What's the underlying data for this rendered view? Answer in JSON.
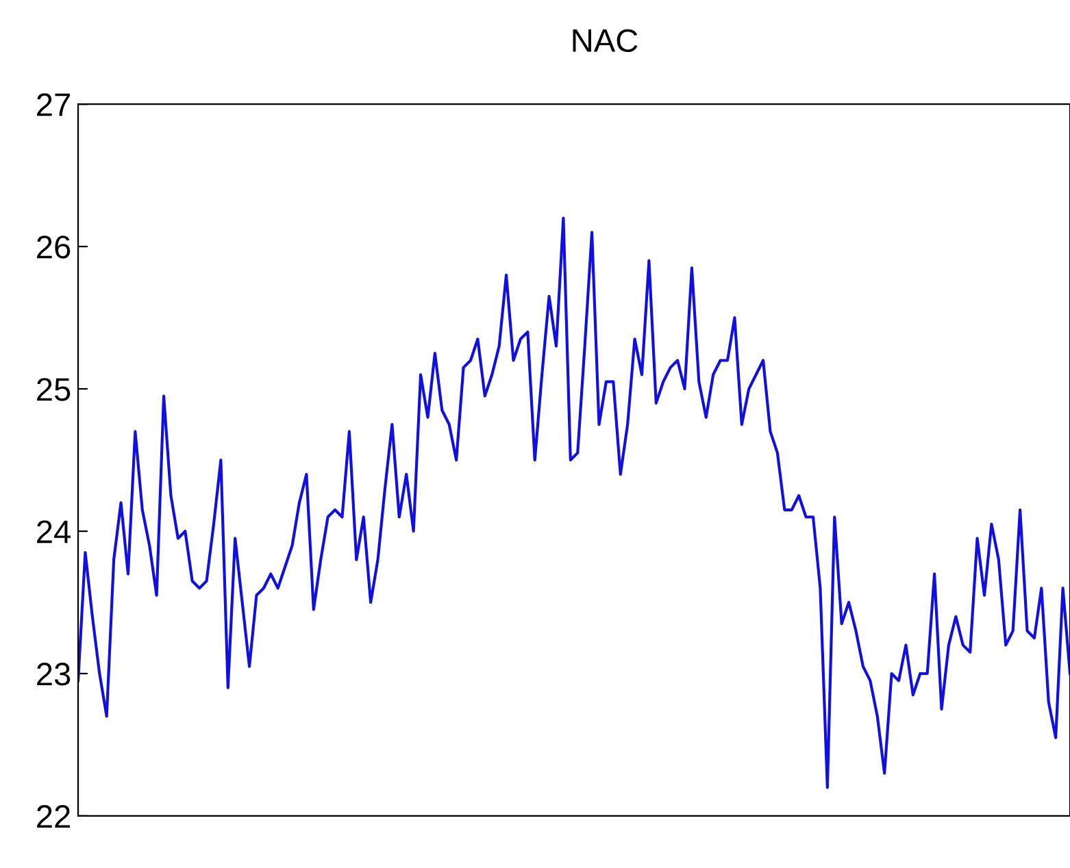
{
  "chart_data": {
    "type": "line",
    "title": "NAC",
    "categories": [
      null,
      null,
      null,
      null,
      null,
      null,
      null,
      null,
      null,
      null,
      null,
      null,
      null,
      null,
      null,
      null,
      null,
      null,
      null,
      null,
      null,
      null,
      null,
      null,
      null,
      null,
      null,
      null,
      null,
      null,
      null,
      null,
      null,
      null,
      null,
      null,
      null,
      null,
      null,
      null,
      null,
      null,
      null,
      null,
      null,
      null,
      null,
      null,
      null,
      null,
      null,
      null,
      null,
      null,
      null,
      null,
      null,
      null,
      null,
      null,
      null,
      null,
      null,
      null,
      null,
      null,
      null,
      null,
      null,
      null,
      null,
      null,
      null,
      null,
      null,
      null,
      null,
      null,
      null,
      null,
      null,
      null,
      null,
      null,
      null,
      null,
      null,
      null,
      null,
      null,
      null,
      null,
      null,
      null,
      null,
      null,
      null,
      null,
      null,
      null,
      null,
      null,
      null,
      null,
      null,
      null,
      null,
      null,
      null,
      null,
      null,
      null,
      null,
      null,
      null,
      null,
      null,
      null,
      null,
      null,
      null,
      null,
      null,
      null,
      null,
      null,
      null,
      null,
      null,
      null,
      null,
      null,
      null,
      null,
      null,
      null,
      null,
      null,
      null,
      null
    ],
    "series": [
      {
        "color": "#1010e0",
        "values": [
          22.95,
          23.85,
          23.4,
          23.0,
          22.7,
          23.8,
          24.2,
          23.7,
          24.7,
          24.15,
          23.9,
          23.55,
          24.95,
          24.25,
          23.95,
          24.0,
          23.65,
          23.6,
          23.65,
          24.05,
          24.5,
          22.9,
          23.95,
          23.5,
          23.05,
          23.55,
          23.6,
          23.7,
          23.6,
          23.75,
          23.9,
          24.2,
          24.4,
          23.45,
          23.8,
          24.1,
          24.15,
          24.1,
          24.7,
          23.8,
          24.1,
          23.5,
          23.8,
          24.3,
          24.75,
          24.1,
          24.4,
          24.0,
          25.1,
          24.8,
          25.25,
          24.85,
          24.75,
          24.5,
          25.15,
          25.2,
          25.35,
          24.95,
          25.1,
          25.3,
          25.8,
          25.2,
          25.35,
          25.4,
          24.5,
          25.1,
          25.65,
          25.3,
          26.2,
          24.5,
          24.55,
          25.3,
          26.1,
          24.75,
          25.05,
          25.05,
          24.4,
          24.75,
          25.35,
          25.1,
          25.9,
          24.9,
          25.05,
          25.15,
          25.2,
          25.0,
          25.85,
          25.05,
          24.8,
          25.1,
          25.2,
          25.2,
          25.5,
          24.75,
          25.0,
          25.1,
          25.2,
          24.7,
          24.55,
          24.15,
          24.15,
          24.25,
          24.1,
          24.1,
          23.6,
          22.2,
          24.1,
          23.35,
          23.5,
          23.3,
          23.05,
          22.95,
          22.7,
          22.3,
          23.0,
          22.95,
          23.2,
          22.85,
          23.0,
          23.0,
          23.7,
          22.75,
          23.2,
          23.4,
          23.2,
          23.15,
          23.95,
          23.55,
          24.05,
          23.8,
          23.2,
          23.3,
          24.15,
          23.3,
          23.25,
          23.6,
          22.8,
          22.55,
          23.6,
          23.0
        ]
      }
    ],
    "ylim": [
      22,
      27
    ],
    "yticks": [
      22,
      23,
      24,
      25,
      26,
      27
    ],
    "grid": false,
    "legend": false,
    "tick_labels": "y"
  }
}
